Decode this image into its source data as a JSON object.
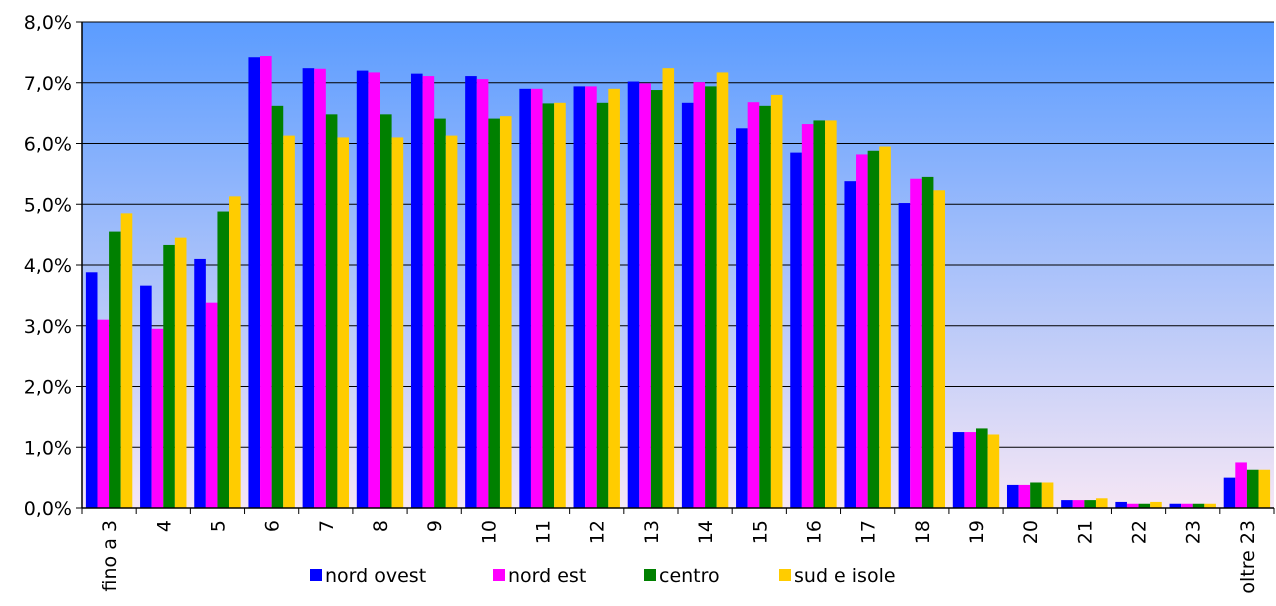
{
  "chart_data": {
    "type": "bar",
    "categories": [
      "fino a 3",
      "4",
      "5",
      "6",
      "7",
      "8",
      "9",
      "10",
      "11",
      "12",
      "13",
      "14",
      "15",
      "16",
      "17",
      "18",
      "19",
      "20",
      "21",
      "22",
      "23",
      "oltre 23"
    ],
    "series": [
      {
        "name": "nord ovest",
        "color": "#0000ff",
        "values": [
          3.88,
          3.66,
          4.1,
          7.42,
          7.24,
          7.2,
          7.15,
          7.11,
          6.9,
          6.94,
          7.02,
          6.67,
          6.25,
          5.85,
          5.38,
          5.02,
          1.25,
          0.38,
          0.13,
          0.1,
          0.07,
          0.5
        ]
      },
      {
        "name": "nord est",
        "color": "#ff00ff",
        "values": [
          3.1,
          2.95,
          3.38,
          7.44,
          7.23,
          7.17,
          7.11,
          7.06,
          6.9,
          6.94,
          6.99,
          7.01,
          6.68,
          6.32,
          5.82,
          5.42,
          1.25,
          0.38,
          0.13,
          0.07,
          0.07,
          0.75
        ]
      },
      {
        "name": "centro",
        "color": "#008000",
        "values": [
          4.55,
          4.33,
          4.88,
          6.62,
          6.48,
          6.48,
          6.41,
          6.41,
          6.66,
          6.67,
          6.88,
          6.94,
          6.62,
          6.38,
          5.88,
          5.45,
          1.31,
          0.42,
          0.13,
          0.07,
          0.07,
          0.63
        ]
      },
      {
        "name": "sud e isole",
        "color": "#ffcc00",
        "values": [
          4.85,
          4.45,
          5.13,
          6.13,
          6.1,
          6.1,
          6.13,
          6.45,
          6.67,
          6.9,
          7.24,
          7.17,
          6.8,
          6.38,
          5.95,
          5.23,
          1.21,
          0.42,
          0.16,
          0.1,
          0.07,
          0.63
        ]
      }
    ],
    "yticks": [
      "0,0%",
      "1,0%",
      "2,0%",
      "3,0%",
      "4,0%",
      "5,0%",
      "6,0%",
      "7,0%",
      "8,0%"
    ],
    "ylim": [
      0,
      8
    ],
    "grid": true,
    "legend_position": "bottom",
    "background": {
      "top": "#5b9cff",
      "bottom": "#f5e6f5"
    },
    "title": "",
    "xlabel": "",
    "ylabel": ""
  }
}
